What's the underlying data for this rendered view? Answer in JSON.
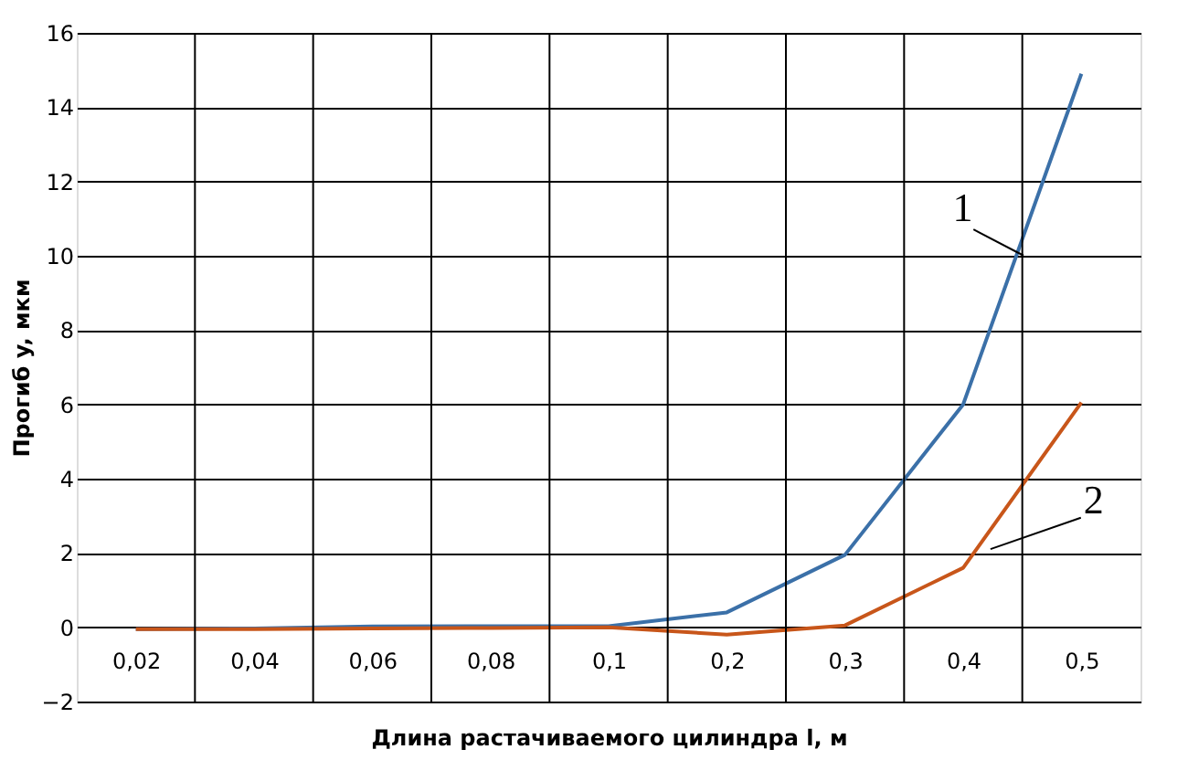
{
  "chart_data": {
    "type": "line",
    "xlabel": "Длина растачиваемого цилиндра l, м",
    "ylabel": "Прогиб y, мкм",
    "categories": [
      "0,02",
      "0,04",
      "0,06",
      "0,08",
      "0,1",
      "0,2",
      "0,3",
      "0,4",
      "0,5"
    ],
    "series": [
      {
        "color": "#3b70a8",
        "values": [
          -0.05,
          -0.03,
          0.02,
          0.03,
          0.03,
          0.4,
          1.95,
          6.0,
          14.9
        ]
      },
      {
        "color": "#c8561a",
        "values": [
          -0.05,
          -0.05,
          -0.03,
          -0.02,
          0.0,
          -0.2,
          0.05,
          1.6,
          6.05
        ]
      }
    ],
    "annotations": [
      "1",
      "2"
    ],
    "ylim": [
      -2,
      16
    ],
    "yticks": [
      -2,
      0,
      2,
      4,
      6,
      8,
      10,
      12,
      14,
      16
    ],
    "grid": true,
    "legend": false,
    "marker": "none",
    "line_style": "solid"
  }
}
